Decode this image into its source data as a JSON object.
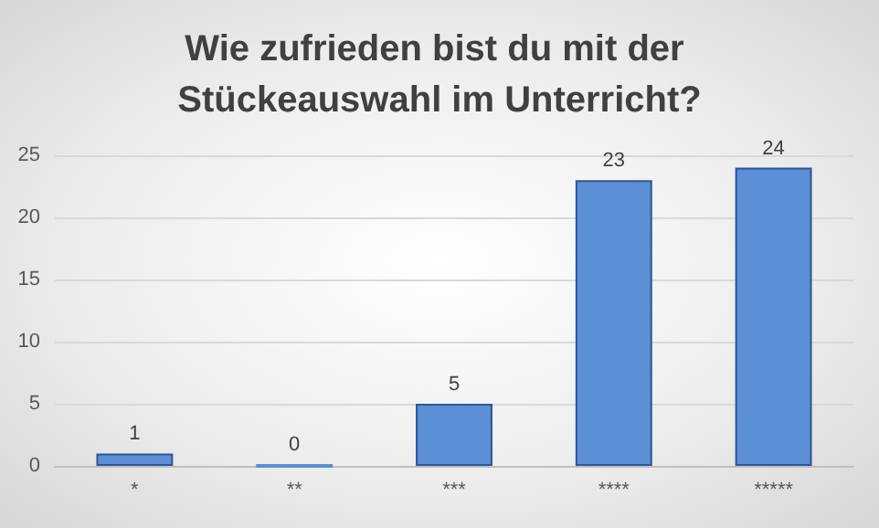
{
  "chart_data": {
    "type": "bar",
    "title": "Wie zufrieden bist du mit der Stückeauswahl im Unterricht?",
    "categories": [
      "*",
      "**",
      "***",
      "****",
      "*****"
    ],
    "values": [
      1,
      0,
      5,
      23,
      24
    ],
    "color": "#5b8fd6",
    "ylim": [
      0,
      25
    ],
    "yticks": [
      0,
      5,
      10,
      15,
      20,
      25
    ],
    "grid": "y",
    "data_labels": true
  }
}
